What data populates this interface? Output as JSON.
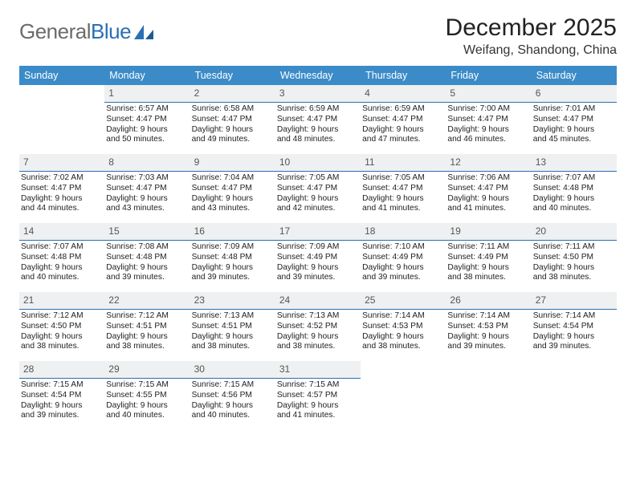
{
  "brand": {
    "part1": "General",
    "part2": "Blue"
  },
  "title": "December 2025",
  "subtitle": "Weifang, Shandong, China",
  "colors": {
    "header_bg": "#3b8bc8",
    "daynum_bg": "#eef0f1",
    "daynum_border": "#2b6fb5",
    "text": "#222222",
    "logo_gray": "#6b6b6b",
    "logo_blue": "#2b6fb5"
  },
  "weekdays": [
    "Sunday",
    "Monday",
    "Tuesday",
    "Wednesday",
    "Thursday",
    "Friday",
    "Saturday"
  ],
  "weeks": [
    [
      null,
      {
        "n": "1",
        "sr": "Sunrise: 6:57 AM",
        "ss": "Sunset: 4:47 PM",
        "d1": "Daylight: 9 hours",
        "d2": "and 50 minutes."
      },
      {
        "n": "2",
        "sr": "Sunrise: 6:58 AM",
        "ss": "Sunset: 4:47 PM",
        "d1": "Daylight: 9 hours",
        "d2": "and 49 minutes."
      },
      {
        "n": "3",
        "sr": "Sunrise: 6:59 AM",
        "ss": "Sunset: 4:47 PM",
        "d1": "Daylight: 9 hours",
        "d2": "and 48 minutes."
      },
      {
        "n": "4",
        "sr": "Sunrise: 6:59 AM",
        "ss": "Sunset: 4:47 PM",
        "d1": "Daylight: 9 hours",
        "d2": "and 47 minutes."
      },
      {
        "n": "5",
        "sr": "Sunrise: 7:00 AM",
        "ss": "Sunset: 4:47 PM",
        "d1": "Daylight: 9 hours",
        "d2": "and 46 minutes."
      },
      {
        "n": "6",
        "sr": "Sunrise: 7:01 AM",
        "ss": "Sunset: 4:47 PM",
        "d1": "Daylight: 9 hours",
        "d2": "and 45 minutes."
      }
    ],
    [
      {
        "n": "7",
        "sr": "Sunrise: 7:02 AM",
        "ss": "Sunset: 4:47 PM",
        "d1": "Daylight: 9 hours",
        "d2": "and 44 minutes."
      },
      {
        "n": "8",
        "sr": "Sunrise: 7:03 AM",
        "ss": "Sunset: 4:47 PM",
        "d1": "Daylight: 9 hours",
        "d2": "and 43 minutes."
      },
      {
        "n": "9",
        "sr": "Sunrise: 7:04 AM",
        "ss": "Sunset: 4:47 PM",
        "d1": "Daylight: 9 hours",
        "d2": "and 43 minutes."
      },
      {
        "n": "10",
        "sr": "Sunrise: 7:05 AM",
        "ss": "Sunset: 4:47 PM",
        "d1": "Daylight: 9 hours",
        "d2": "and 42 minutes."
      },
      {
        "n": "11",
        "sr": "Sunrise: 7:05 AM",
        "ss": "Sunset: 4:47 PM",
        "d1": "Daylight: 9 hours",
        "d2": "and 41 minutes."
      },
      {
        "n": "12",
        "sr": "Sunrise: 7:06 AM",
        "ss": "Sunset: 4:47 PM",
        "d1": "Daylight: 9 hours",
        "d2": "and 41 minutes."
      },
      {
        "n": "13",
        "sr": "Sunrise: 7:07 AM",
        "ss": "Sunset: 4:48 PM",
        "d1": "Daylight: 9 hours",
        "d2": "and 40 minutes."
      }
    ],
    [
      {
        "n": "14",
        "sr": "Sunrise: 7:07 AM",
        "ss": "Sunset: 4:48 PM",
        "d1": "Daylight: 9 hours",
        "d2": "and 40 minutes."
      },
      {
        "n": "15",
        "sr": "Sunrise: 7:08 AM",
        "ss": "Sunset: 4:48 PM",
        "d1": "Daylight: 9 hours",
        "d2": "and 39 minutes."
      },
      {
        "n": "16",
        "sr": "Sunrise: 7:09 AM",
        "ss": "Sunset: 4:48 PM",
        "d1": "Daylight: 9 hours",
        "d2": "and 39 minutes."
      },
      {
        "n": "17",
        "sr": "Sunrise: 7:09 AM",
        "ss": "Sunset: 4:49 PM",
        "d1": "Daylight: 9 hours",
        "d2": "and 39 minutes."
      },
      {
        "n": "18",
        "sr": "Sunrise: 7:10 AM",
        "ss": "Sunset: 4:49 PM",
        "d1": "Daylight: 9 hours",
        "d2": "and 39 minutes."
      },
      {
        "n": "19",
        "sr": "Sunrise: 7:11 AM",
        "ss": "Sunset: 4:49 PM",
        "d1": "Daylight: 9 hours",
        "d2": "and 38 minutes."
      },
      {
        "n": "20",
        "sr": "Sunrise: 7:11 AM",
        "ss": "Sunset: 4:50 PM",
        "d1": "Daylight: 9 hours",
        "d2": "and 38 minutes."
      }
    ],
    [
      {
        "n": "21",
        "sr": "Sunrise: 7:12 AM",
        "ss": "Sunset: 4:50 PM",
        "d1": "Daylight: 9 hours",
        "d2": "and 38 minutes."
      },
      {
        "n": "22",
        "sr": "Sunrise: 7:12 AM",
        "ss": "Sunset: 4:51 PM",
        "d1": "Daylight: 9 hours",
        "d2": "and 38 minutes."
      },
      {
        "n": "23",
        "sr": "Sunrise: 7:13 AM",
        "ss": "Sunset: 4:51 PM",
        "d1": "Daylight: 9 hours",
        "d2": "and 38 minutes."
      },
      {
        "n": "24",
        "sr": "Sunrise: 7:13 AM",
        "ss": "Sunset: 4:52 PM",
        "d1": "Daylight: 9 hours",
        "d2": "and 38 minutes."
      },
      {
        "n": "25",
        "sr": "Sunrise: 7:14 AM",
        "ss": "Sunset: 4:53 PM",
        "d1": "Daylight: 9 hours",
        "d2": "and 38 minutes."
      },
      {
        "n": "26",
        "sr": "Sunrise: 7:14 AM",
        "ss": "Sunset: 4:53 PM",
        "d1": "Daylight: 9 hours",
        "d2": "and 39 minutes."
      },
      {
        "n": "27",
        "sr": "Sunrise: 7:14 AM",
        "ss": "Sunset: 4:54 PM",
        "d1": "Daylight: 9 hours",
        "d2": "and 39 minutes."
      }
    ],
    [
      {
        "n": "28",
        "sr": "Sunrise: 7:15 AM",
        "ss": "Sunset: 4:54 PM",
        "d1": "Daylight: 9 hours",
        "d2": "and 39 minutes."
      },
      {
        "n": "29",
        "sr": "Sunrise: 7:15 AM",
        "ss": "Sunset: 4:55 PM",
        "d1": "Daylight: 9 hours",
        "d2": "and 40 minutes."
      },
      {
        "n": "30",
        "sr": "Sunrise: 7:15 AM",
        "ss": "Sunset: 4:56 PM",
        "d1": "Daylight: 9 hours",
        "d2": "and 40 minutes."
      },
      {
        "n": "31",
        "sr": "Sunrise: 7:15 AM",
        "ss": "Sunset: 4:57 PM",
        "d1": "Daylight: 9 hours",
        "d2": "and 41 minutes."
      },
      null,
      null,
      null
    ]
  ]
}
